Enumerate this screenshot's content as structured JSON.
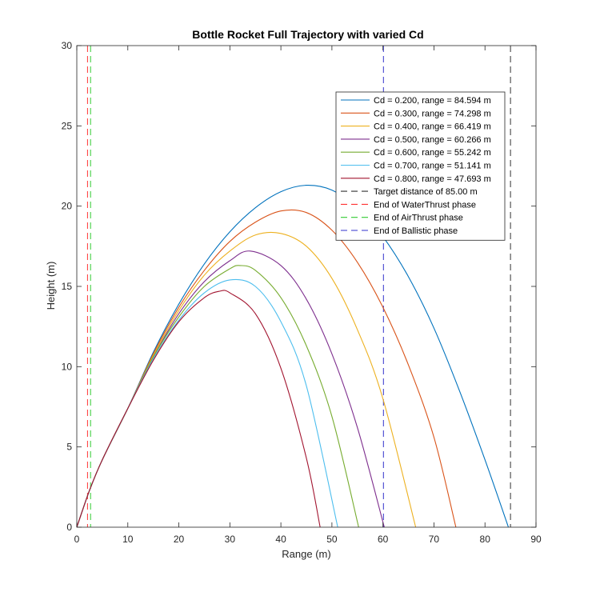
{
  "chart_data": {
    "type": "line",
    "title": "Bottle Rocket Full Trajectory with varied Cd",
    "xlabel": "Range (m)",
    "ylabel": "Height (m)",
    "xlim": [
      0,
      90
    ],
    "ylim": [
      0,
      30
    ],
    "xticks": [
      0,
      10,
      20,
      30,
      40,
      50,
      60,
      70,
      80,
      90
    ],
    "yticks": [
      0,
      5,
      10,
      15,
      20,
      25,
      30
    ],
    "xtick_labels": [
      "0",
      "10",
      "20",
      "30",
      "40",
      "50",
      "60",
      "70",
      "80",
      "90"
    ],
    "ytick_labels": [
      "0",
      "5",
      "10",
      "15",
      "20",
      "25",
      "30"
    ],
    "grid": false,
    "legend_position": "top-right",
    "series": [
      {
        "name": "Cd = 0.200, range = 84.594 m",
        "color": "#0072BD",
        "x": [
          0,
          2.5,
          5,
          10,
          15,
          20,
          25,
          30,
          35,
          40,
          45,
          50,
          55,
          60,
          65,
          70,
          75,
          80,
          84.594
        ],
        "y": [
          0,
          2.3,
          4.2,
          7.4,
          10.9,
          13.9,
          16.4,
          18.4,
          19.9,
          20.9,
          21.3,
          21.0,
          19.9,
          18.1,
          15.6,
          12.4,
          8.5,
          4.2,
          0
        ]
      },
      {
        "name": "Cd = 0.300, range = 74.298 m",
        "color": "#D95319",
        "x": [
          0,
          2.5,
          5,
          10,
          15,
          20,
          25,
          30,
          35,
          40,
          45,
          50,
          55,
          60,
          65,
          70,
          74.298
        ],
        "y": [
          0,
          2.3,
          4.2,
          7.4,
          10.8,
          13.7,
          16.0,
          17.8,
          19.0,
          19.7,
          19.6,
          18.5,
          16.5,
          13.7,
          10.1,
          5.6,
          0
        ]
      },
      {
        "name": "Cd = 0.400, range = 66.419 m",
        "color": "#EDB120",
        "x": [
          0,
          2.5,
          5,
          10,
          15,
          20,
          25,
          30,
          35,
          40,
          45,
          50,
          55,
          60,
          66.419
        ],
        "y": [
          0,
          2.3,
          4.2,
          7.4,
          10.7,
          13.5,
          15.7,
          17.2,
          18.2,
          18.3,
          17.5,
          15.5,
          12.3,
          8.0,
          0
        ]
      },
      {
        "name": "Cd = 0.500, range = 60.266 m",
        "color": "#7E2F8E",
        "x": [
          0,
          2.5,
          5,
          10,
          15,
          20,
          25,
          30,
          34,
          40,
          45,
          50,
          55,
          60.266
        ],
        "y": [
          0,
          2.3,
          4.2,
          7.4,
          10.6,
          13.3,
          15.3,
          16.6,
          17.2,
          16.3,
          14.2,
          10.8,
          6.2,
          0
        ]
      },
      {
        "name": "Cd = 0.600, range = 55.242 m",
        "color": "#77AC30",
        "x": [
          0,
          2.5,
          5,
          10,
          15,
          20,
          25,
          30,
          32,
          35,
          40,
          45,
          50,
          55.242
        ],
        "y": [
          0,
          2.3,
          4.2,
          7.4,
          10.6,
          13.1,
          15.0,
          16.1,
          16.3,
          16.0,
          14.3,
          11.3,
          6.9,
          0
        ]
      },
      {
        "name": "Cd = 0.700, range = 51.141 m",
        "color": "#4DBEEE",
        "x": [
          0,
          2.5,
          5,
          10,
          15,
          20,
          25,
          30,
          35,
          40,
          45,
          51.141
        ],
        "y": [
          0,
          2.3,
          4.2,
          7.4,
          10.5,
          12.9,
          14.6,
          15.4,
          15.0,
          12.8,
          8.8,
          0
        ]
      },
      {
        "name": "Cd = 0.800, range = 47.693 m",
        "color": "#A2142F",
        "x": [
          0,
          2.5,
          5,
          10,
          15,
          20,
          25,
          28,
          30,
          35,
          40,
          45,
          47.693
        ],
        "y": [
          0,
          2.3,
          4.2,
          7.4,
          10.4,
          12.8,
          14.3,
          14.7,
          14.6,
          13.3,
          9.9,
          4.3,
          0
        ]
      }
    ],
    "vertical_lines": [
      {
        "name": "Target distance of 85.00 m",
        "x": 85,
        "color": "#333333"
      },
      {
        "name": "End of WaterThrust phase",
        "x": 2.1,
        "color": "#FF3333"
      },
      {
        "name": "End of AirThrust phase",
        "x": 2.7,
        "color": "#33CC33"
      },
      {
        "name": "End of Ballistic phase",
        "x": 60.1,
        "color": "#3333CC"
      }
    ]
  }
}
